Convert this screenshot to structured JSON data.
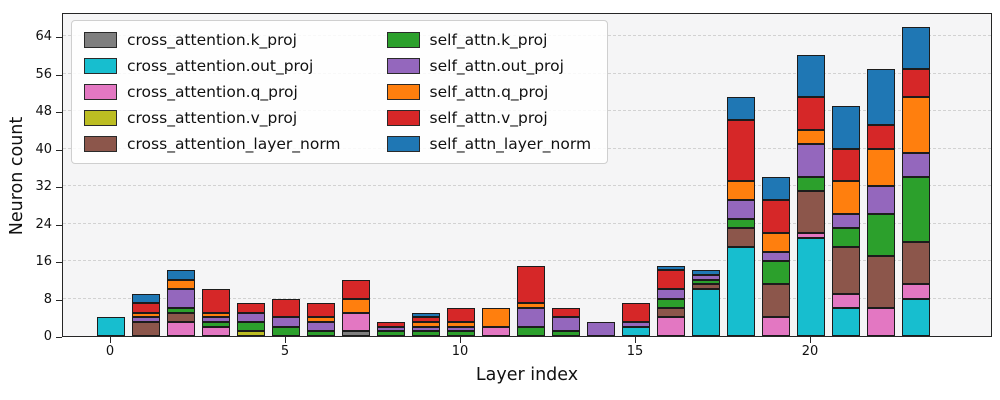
{
  "chart_data": {
    "type": "bar",
    "stacked": true,
    "title": "",
    "xlabel": "Layer index",
    "ylabel": "Neuron count",
    "x_ticks": [
      0,
      5,
      10,
      15,
      20
    ],
    "y_ticks": [
      0,
      8,
      16,
      24,
      32,
      40,
      48,
      56,
      64
    ],
    "x_range_layers": [
      0,
      23
    ],
    "ylim": [
      0,
      69
    ],
    "grid": "horizontal dashed",
    "legend_position": "upper left, 2 columns",
    "categories": [
      0,
      1,
      2,
      3,
      4,
      5,
      6,
      7,
      8,
      9,
      10,
      11,
      12,
      13,
      14,
      15,
      16,
      17,
      18,
      19,
      20,
      21,
      22,
      23
    ],
    "series": [
      {
        "name": "cross_attention.k_proj",
        "color": "#7f7f7f",
        "values": [
          0,
          0,
          0,
          0,
          0,
          0,
          0,
          1,
          0,
          0,
          0,
          0,
          0,
          0,
          0,
          0,
          0,
          0,
          0,
          0,
          0,
          0,
          0,
          0
        ]
      },
      {
        "name": "cross_attention.out_proj",
        "color": "#17becf",
        "values": [
          4,
          0,
          0,
          0,
          0,
          0,
          0,
          0,
          0,
          0,
          0,
          0,
          0,
          0,
          0,
          2,
          0,
          10,
          19,
          0,
          21,
          6,
          0,
          8
        ]
      },
      {
        "name": "cross_attention.q_proj",
        "color": "#e377c2",
        "values": [
          0,
          0,
          3,
          2,
          0,
          0,
          0,
          4,
          0,
          0,
          0,
          2,
          0,
          0,
          0,
          0,
          4,
          0,
          0,
          4,
          1,
          3,
          6,
          3
        ]
      },
      {
        "name": "cross_attention.v_proj",
        "color": "#bcbd22",
        "values": [
          0,
          0,
          0,
          0,
          1,
          0,
          0,
          0,
          0,
          0,
          0,
          0,
          0,
          0,
          0,
          0,
          0,
          0,
          0,
          0,
          0,
          0,
          0,
          0
        ]
      },
      {
        "name": "cross_attention_layer_norm",
        "color": "#8c564b",
        "values": [
          0,
          3,
          2,
          0,
          0,
          0,
          0,
          0,
          0,
          0,
          0,
          0,
          0,
          0,
          0,
          0,
          2,
          1,
          4,
          7,
          9,
          10,
          11,
          9
        ]
      },
      {
        "name": "self_attn.k_proj",
        "color": "#2ca02c",
        "values": [
          0,
          0,
          1,
          1,
          2,
          2,
          1,
          0,
          1,
          1,
          1,
          0,
          2,
          1,
          0,
          0,
          2,
          1,
          2,
          5,
          3,
          4,
          9,
          14
        ]
      },
      {
        "name": "self_attn.out_proj",
        "color": "#9467bd",
        "values": [
          0,
          1,
          4,
          1,
          2,
          2,
          2,
          0,
          1,
          1,
          1,
          0,
          4,
          3,
          3,
          1,
          2,
          1,
          4,
          2,
          7,
          3,
          6,
          5
        ]
      },
      {
        "name": "self_attn.q_proj",
        "color": "#ff7f0e",
        "values": [
          0,
          1,
          2,
          1,
          0,
          0,
          1,
          3,
          0,
          1,
          1,
          4,
          1,
          0,
          0,
          0,
          0,
          0,
          4,
          4,
          3,
          7,
          8,
          12
        ]
      },
      {
        "name": "self_attn.v_proj",
        "color": "#d62728",
        "values": [
          0,
          2,
          0,
          5,
          2,
          4,
          3,
          4,
          1,
          1,
          3,
          0,
          8,
          2,
          0,
          4,
          4,
          0,
          13,
          7,
          7,
          7,
          5,
          6
        ]
      },
      {
        "name": "self_attn_layer_norm",
        "color": "#1f77b4",
        "values": [
          0,
          2,
          2,
          0,
          0,
          0,
          0,
          0,
          0,
          1,
          0,
          0,
          0,
          0,
          0,
          0,
          1,
          1,
          5,
          5,
          9,
          9,
          12,
          9
        ]
      }
    ]
  }
}
